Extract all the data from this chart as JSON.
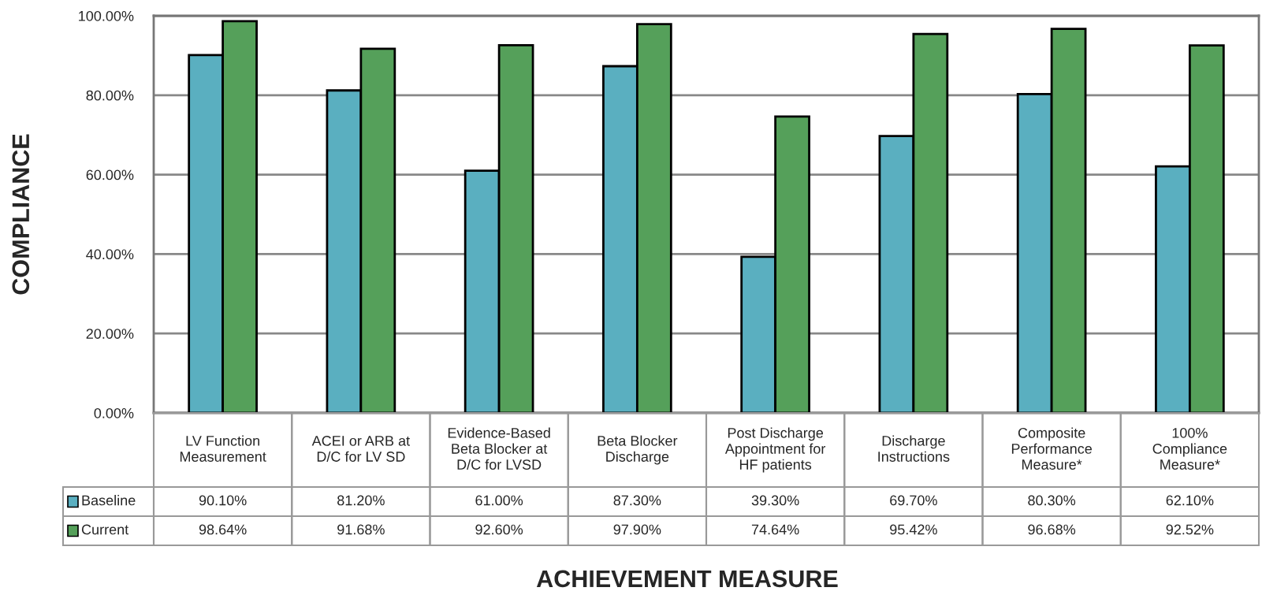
{
  "chart_data": {
    "type": "bar",
    "ylabel": "COMPLIANCE",
    "xlabel": "ACHIEVEMENT MEASURE",
    "categories": [
      "LV Function\nMeasurement",
      "ACEI or ARB at\nD/C for LV SD",
      "Evidence-Based\nBeta Blocker at\nD/C for LVSD",
      "Beta Blocker\nDischarge",
      "Post Discharge\nAppointment for\nHF patients",
      "Discharge\nInstructions",
      "Composite\nPerformance\nMeasure*",
      "100%\nCompliance\nMeasure*"
    ],
    "series": [
      {
        "name": "Baseline",
        "color": "#5aafc0",
        "values": [
          90.1,
          81.2,
          61.0,
          87.3,
          39.3,
          69.7,
          80.3,
          62.1
        ],
        "value_labels": [
          "90.10%",
          "81.20%",
          "61.00%",
          "87.30%",
          "39.30%",
          "69.70%",
          "80.30%",
          "62.10%"
        ]
      },
      {
        "name": "Current",
        "color": "#55a05a",
        "values": [
          98.64,
          91.68,
          92.6,
          97.9,
          74.64,
          95.42,
          96.68,
          92.52
        ],
        "value_labels": [
          "98.64%",
          "91.68%",
          "92.60%",
          "97.90%",
          "74.64%",
          "95.42%",
          "96.68%",
          "92.52%"
        ]
      }
    ],
    "ylim": [
      0,
      100
    ],
    "yticks": [
      {
        "value": 0,
        "label": "0.00%"
      },
      {
        "value": 20,
        "label": "20.00%"
      },
      {
        "value": 40,
        "label": "40.00%"
      },
      {
        "value": 60,
        "label": "60.00%"
      },
      {
        "value": 80,
        "label": "80.00%"
      },
      {
        "value": 100,
        "label": "100.00%"
      }
    ],
    "grid": "y",
    "legend": "bottom left"
  }
}
